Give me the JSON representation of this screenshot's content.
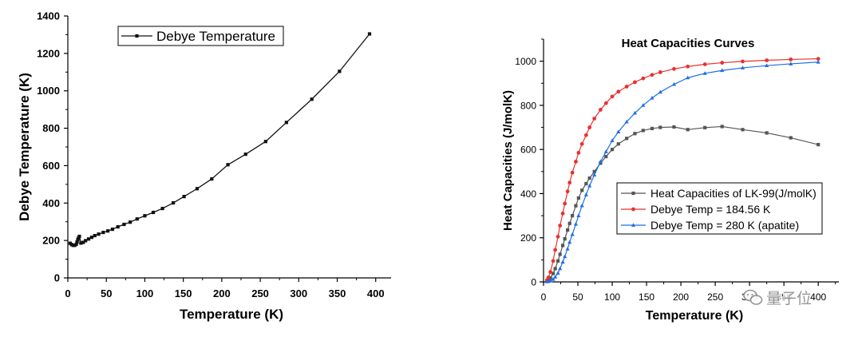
{
  "chart_data": [
    {
      "type": "line",
      "xlabel": "Temperature (K)",
      "ylabel": "Debye Temperature (K)",
      "xlim": [
        0,
        420
      ],
      "ylim": [
        0,
        1400
      ],
      "xticks": [
        0,
        50,
        100,
        150,
        200,
        250,
        300,
        350,
        400
      ],
      "yticks": [
        0,
        200,
        400,
        600,
        800,
        1000,
        1200,
        1400
      ],
      "grid": false,
      "legend_position": "top-left",
      "series": [
        {
          "name": "Debye Temperature",
          "color": "#111111",
          "marker": "square",
          "x": [
            3,
            5,
            7,
            9,
            11,
            12,
            13,
            14,
            15,
            17,
            20,
            23,
            27,
            31,
            35,
            40,
            46,
            52,
            58,
            65,
            73,
            81,
            90,
            100,
            111,
            123,
            137,
            151,
            168,
            187,
            208,
            231,
            257,
            284,
            317,
            353,
            392
          ],
          "y": [
            185,
            178,
            174,
            174,
            180,
            192,
            205,
            214,
            222,
            186,
            190,
            199,
            208,
            217,
            226,
            234,
            243,
            251,
            260,
            273,
            286,
            298,
            315,
            332,
            350,
            371,
            401,
            435,
            477,
            529,
            605,
            661,
            729,
            831,
            955,
            1104,
            1304
          ]
        }
      ]
    },
    {
      "type": "line",
      "title": "Heat Capacities Curves",
      "xlabel": "Temperature (K)",
      "ylabel": "Heat Capacities (J/molK)",
      "xlim": [
        0,
        430
      ],
      "ylim": [
        0,
        1100
      ],
      "xticks": [
        0,
        50,
        100,
        150,
        200,
        250,
        300,
        350,
        400
      ],
      "yticks": [
        0,
        200,
        400,
        600,
        800,
        1000
      ],
      "grid": false,
      "legend_position": "center-right",
      "series": [
        {
          "name": "Heat Capacities of LK-99(J/molK)",
          "color": "#555555",
          "marker": "square",
          "x": [
            5,
            7,
            10,
            14,
            17,
            21,
            24,
            28,
            31,
            35,
            38,
            42,
            47,
            51,
            56,
            62,
            67,
            74,
            83,
            91,
            100,
            109,
            121,
            133,
            145,
            158,
            170,
            190,
            210,
            235,
            260,
            290,
            325,
            360,
            400
          ],
          "y": [
            3,
            8,
            18,
            38,
            60,
            95,
            125,
            165,
            195,
            235,
            265,
            300,
            345,
            380,
            415,
            445,
            470,
            500,
            538,
            568,
            600,
            625,
            650,
            672,
            686,
            695,
            700,
            702,
            690,
            699,
            704,
            690,
            675,
            653,
            622
          ]
        },
        {
          "name": "Debye Temp = 184.56 K",
          "color": "#e8322f",
          "marker": "circle",
          "x": [
            5,
            7,
            10,
            14,
            17,
            21,
            24,
            28,
            31,
            35,
            38,
            42,
            47,
            51,
            56,
            62,
            67,
            74,
            83,
            91,
            100,
            109,
            121,
            133,
            145,
            158,
            170,
            190,
            210,
            235,
            260,
            290,
            325,
            360,
            400
          ],
          "y": [
            8,
            20,
            45,
            95,
            145,
            205,
            255,
            310,
            355,
            410,
            450,
            495,
            545,
            585,
            625,
            665,
            700,
            740,
            780,
            810,
            840,
            862,
            885,
            905,
            922,
            938,
            950,
            965,
            976,
            986,
            993,
            999,
            1004,
            1008,
            1011
          ]
        },
        {
          "name": "Debye Temp = 280 K (apatite)",
          "color": "#1f6fe0",
          "marker": "triangle",
          "x": [
            5,
            7,
            10,
            14,
            17,
            21,
            24,
            28,
            31,
            35,
            38,
            42,
            47,
            51,
            56,
            62,
            67,
            74,
            83,
            91,
            100,
            109,
            121,
            133,
            145,
            158,
            170,
            190,
            210,
            235,
            260,
            290,
            325,
            360,
            400
          ],
          "y": [
            1,
            2,
            5,
            12,
            22,
            40,
            60,
            90,
            115,
            150,
            180,
            215,
            262,
            300,
            345,
            395,
            435,
            485,
            545,
            590,
            640,
            680,
            725,
            765,
            800,
            833,
            860,
            895,
            925,
            945,
            958,
            970,
            980,
            988,
            996
          ]
        }
      ]
    }
  ],
  "watermark": {
    "text": "量子位",
    "icon": "wechat-icon"
  }
}
